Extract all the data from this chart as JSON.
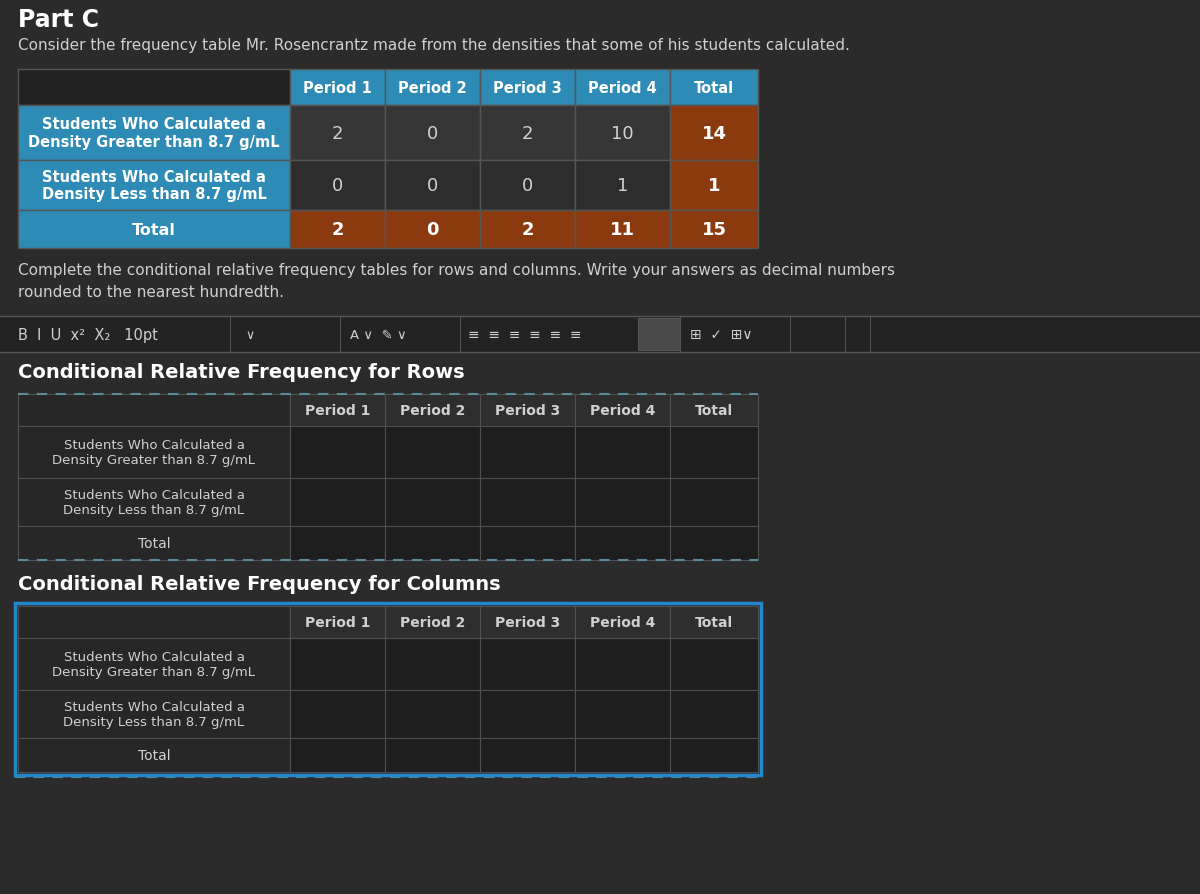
{
  "bg_color": "#2b2b2b",
  "text_color_light": "#d0d0d0",
  "text_color_white": "#ffffff",
  "part_c_title": "Part C",
  "subtitle": "Consider the frequency table Mr. Rosencrantz made from the densities that some of his students calculated.",
  "main_table": {
    "col_headers": [
      "Period 1",
      "Period 2",
      "Period 3",
      "Period 4",
      "Total"
    ],
    "row_labels": [
      "Students Who Calculated a\nDensity Greater than 8.7 g/mL",
      "Students Who Calculated a\nDensity Less than 8.7 g/mL",
      "Total"
    ],
    "data": [
      [
        2,
        0,
        2,
        10,
        14
      ],
      [
        0,
        0,
        0,
        1,
        1
      ],
      [
        2,
        0,
        2,
        11,
        15
      ]
    ],
    "header_bg": "#2e8bb5",
    "label_row1_bg": "#2e8bb5",
    "label_row2_bg": "#2e8bb5",
    "label_total_bg": "#2e8bb5",
    "data_row1_bg": "#363636",
    "data_row2_bg": "#2d2d2d",
    "total_data_bg": "#8b3a10",
    "total_col_bg": "#8b3a10",
    "corner_bg": "#222222"
  },
  "instruction_text1": "Complete the conditional relative frequency tables for rows and columns. Write your answers as decimal numbers",
  "instruction_text2": "rounded to the nearest hundredth.",
  "rows_title": "Conditional Relative Frequency for Rows",
  "cols_title": "Conditional Relative Frequency for Columns",
  "col_headers": [
    "Period 1",
    "Period 2",
    "Period 3",
    "Period 4",
    "Total"
  ],
  "row_labels_empty": [
    "Students Who Calculated a\nDensity Greater than 8.7 g/mL",
    "Students Who Calculated a\nDensity Less than 8.7 g/mL",
    "Total"
  ],
  "blue_border_color": "#2288cc",
  "dashed_border_color": "#5a8a9a",
  "toolbar_sep_color": "#555555"
}
